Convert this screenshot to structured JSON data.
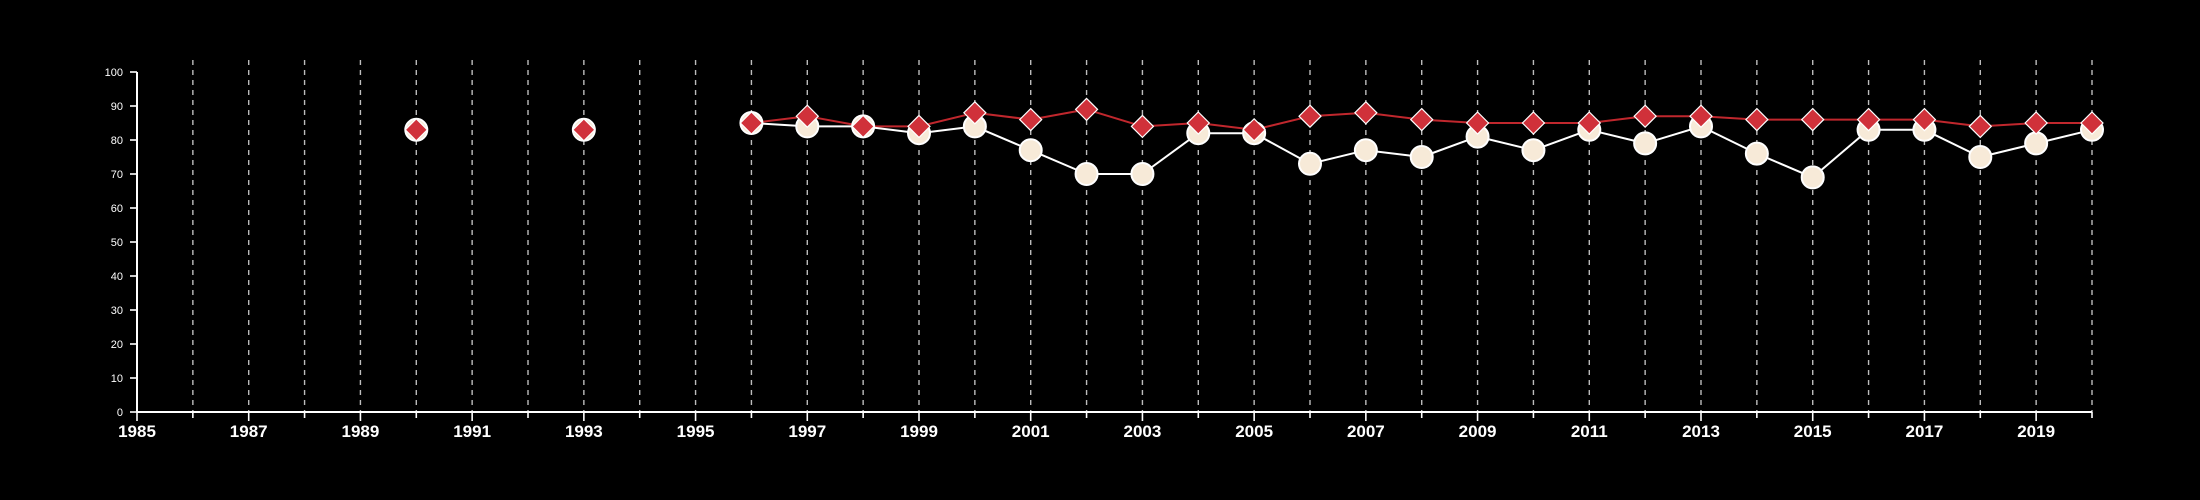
{
  "chart_data": {
    "type": "line",
    "title": "",
    "xlabel": "",
    "ylabel": "",
    "xlim": [
      1985,
      2020
    ],
    "ylim": [
      0,
      100
    ],
    "x_ticks": [
      "1985",
      "1987",
      "1989",
      "1991",
      "1993",
      "1995",
      "1997",
      "1999",
      "2001",
      "2003",
      "2005",
      "2007",
      "2009",
      "2011",
      "2013",
      "2015",
      "2017",
      "2019"
    ],
    "y_ticks": [
      "0",
      "10",
      "20",
      "30",
      "40",
      "50",
      "60",
      "70",
      "80",
      "90",
      "100"
    ],
    "grid": "vertical dashed lines at each year",
    "legend": "none",
    "background_color": "#000000",
    "series": [
      {
        "marker": "diamond",
        "color": "#d0313a",
        "line_color": "#c0272d",
        "points": [
          {
            "x": 1990,
            "y": 83
          },
          {
            "x": 1993,
            "y": 83
          },
          {
            "x": 1996,
            "y": 85
          },
          {
            "x": 1997,
            "y": 87
          },
          {
            "x": 1998,
            "y": 84
          },
          {
            "x": 1999,
            "y": 84
          },
          {
            "x": 2000,
            "y": 88
          },
          {
            "x": 2001,
            "y": 86
          },
          {
            "x": 2002,
            "y": 89
          },
          {
            "x": 2003,
            "y": 84
          },
          {
            "x": 2004,
            "y": 85
          },
          {
            "x": 2005,
            "y": 83
          },
          {
            "x": 2006,
            "y": 87
          },
          {
            "x": 2007,
            "y": 88
          },
          {
            "x": 2008,
            "y": 86
          },
          {
            "x": 2009,
            "y": 85
          },
          {
            "x": 2010,
            "y": 85
          },
          {
            "x": 2011,
            "y": 85
          },
          {
            "x": 2012,
            "y": 87
          },
          {
            "x": 2013,
            "y": 87
          },
          {
            "x": 2014,
            "y": 86
          },
          {
            "x": 2015,
            "y": 86
          },
          {
            "x": 2016,
            "y": 86
          },
          {
            "x": 2017,
            "y": 86
          },
          {
            "x": 2018,
            "y": 84
          },
          {
            "x": 2019,
            "y": 85
          },
          {
            "x": 2020,
            "y": 85
          }
        ]
      },
      {
        "marker": "circle",
        "color": "#f7ead8",
        "line_color": "#ffffff",
        "points": [
          {
            "x": 1990,
            "y": 83
          },
          {
            "x": 1993,
            "y": 83
          },
          {
            "x": 1996,
            "y": 85
          },
          {
            "x": 1997,
            "y": 84
          },
          {
            "x": 1998,
            "y": 84
          },
          {
            "x": 1999,
            "y": 82
          },
          {
            "x": 2000,
            "y": 84
          },
          {
            "x": 2001,
            "y": 77
          },
          {
            "x": 2002,
            "y": 70
          },
          {
            "x": 2003,
            "y": 70
          },
          {
            "x": 2004,
            "y": 82
          },
          {
            "x": 2005,
            "y": 82
          },
          {
            "x": 2006,
            "y": 73
          },
          {
            "x": 2007,
            "y": 77
          },
          {
            "x": 2008,
            "y": 75
          },
          {
            "x": 2009,
            "y": 81
          },
          {
            "x": 2010,
            "y": 77
          },
          {
            "x": 2011,
            "y": 83
          },
          {
            "x": 2012,
            "y": 79
          },
          {
            "x": 2013,
            "y": 84
          },
          {
            "x": 2014,
            "y": 76
          },
          {
            "x": 2015,
            "y": 69
          },
          {
            "x": 2016,
            "y": 83
          },
          {
            "x": 2017,
            "y": 83
          },
          {
            "x": 2018,
            "y": 75
          },
          {
            "x": 2019,
            "y": 79
          },
          {
            "x": 2020,
            "y": 83
          }
        ]
      }
    ]
  }
}
